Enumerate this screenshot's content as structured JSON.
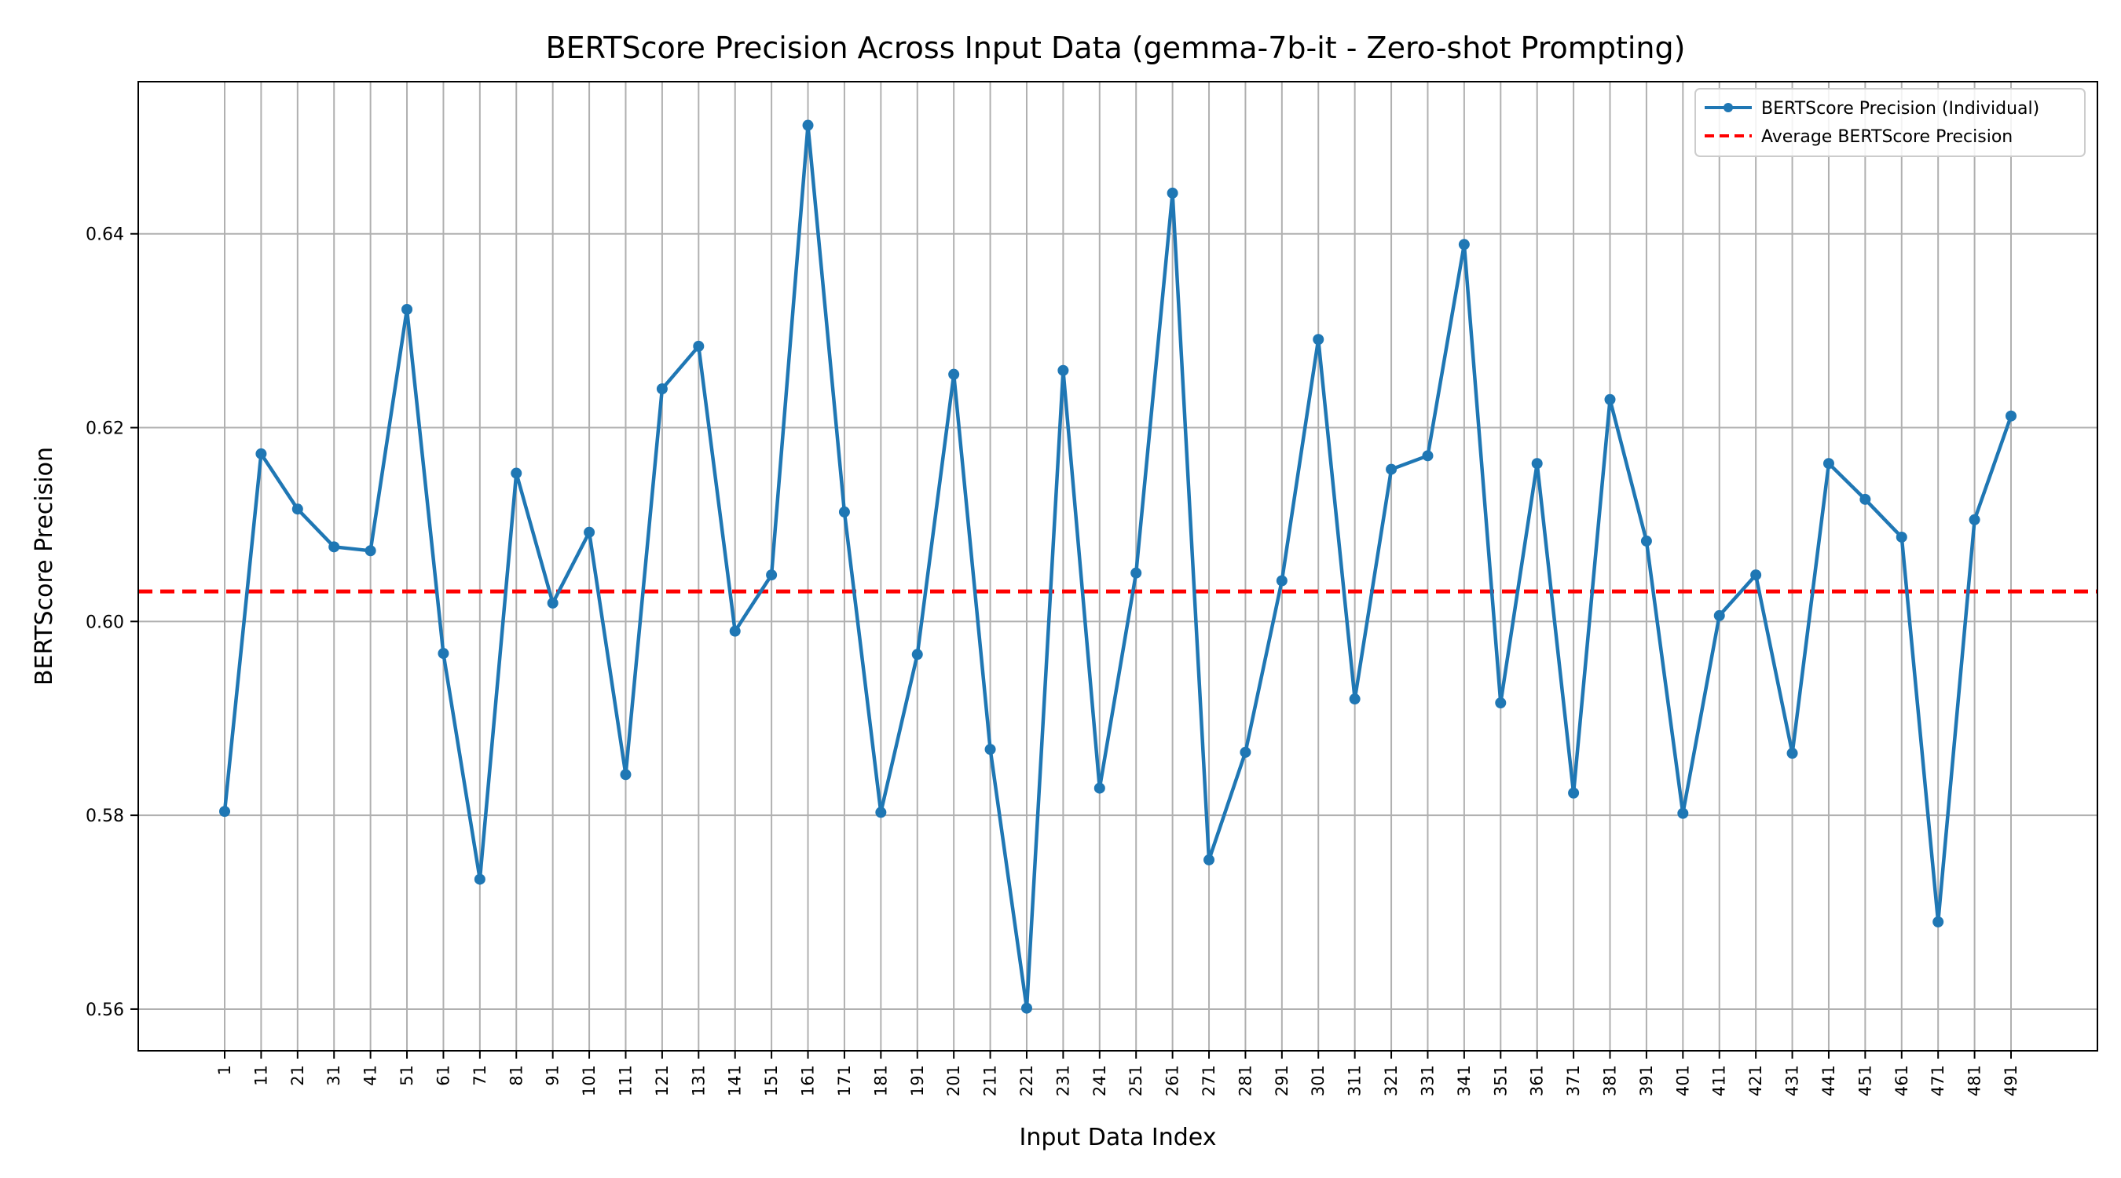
{
  "chart_data": {
    "type": "line",
    "title": "BERTScore Precision Across Input Data (gemma-7b-it - Zero-shot Prompting)",
    "xlabel": "Input Data Index",
    "ylabel": "BERTScore Precision",
    "x": [
      1,
      11,
      21,
      31,
      41,
      51,
      61,
      71,
      81,
      91,
      101,
      111,
      121,
      131,
      141,
      151,
      161,
      171,
      181,
      191,
      201,
      211,
      221,
      231,
      241,
      251,
      261,
      271,
      281,
      291,
      301,
      311,
      321,
      331,
      341,
      351,
      361,
      371,
      381,
      391,
      401,
      411,
      421,
      431,
      441,
      451,
      461,
      471,
      481,
      491
    ],
    "series": [
      {
        "name": "BERTScore Precision (Individual)",
        "color": "#1f77b4",
        "marker": "circle",
        "values": [
          0.5804,
          0.6173,
          0.6116,
          0.6077,
          0.6073,
          0.6322,
          0.5967,
          0.5734,
          0.6153,
          0.6019,
          0.6092,
          0.5842,
          0.624,
          0.6284,
          0.599,
          0.6048,
          0.6512,
          0.6113,
          0.5803,
          0.5966,
          0.6255,
          0.5868,
          0.5601,
          0.6259,
          0.5828,
          0.605,
          0.6442,
          0.5754,
          0.5865,
          0.6042,
          0.6291,
          0.592,
          0.6157,
          0.6171,
          0.6389,
          0.5916,
          0.6163,
          0.5823,
          0.6229,
          0.6083,
          0.5802,
          0.6006,
          0.6048,
          0.5864,
          0.6163,
          0.6126,
          0.6087,
          0.569,
          0.6105,
          0.6212
        ]
      }
    ],
    "reference_lines": [
      {
        "name": "Average BERTScore Precision",
        "y": 0.6031,
        "color": "#ff0000",
        "style": "dashed"
      }
    ],
    "ylim": [
      0.5557,
      0.6557
    ],
    "yticks": [
      0.56,
      0.58,
      0.6,
      0.62,
      0.64
    ],
    "ytick_labels": [
      "0.56",
      "0.58",
      "0.60",
      "0.62",
      "0.64"
    ],
    "xtick_labels": [
      "1",
      "11",
      "21",
      "31",
      "41",
      "51",
      "61",
      "71",
      "81",
      "91",
      "101",
      "111",
      "121",
      "131",
      "141",
      "151",
      "161",
      "171",
      "181",
      "191",
      "201",
      "211",
      "221",
      "231",
      "241",
      "251",
      "261",
      "271",
      "281",
      "291",
      "301",
      "311",
      "321",
      "331",
      "341",
      "351",
      "361",
      "371",
      "381",
      "391",
      "401",
      "411",
      "421",
      "431",
      "441",
      "451",
      "461",
      "471",
      "481",
      "491"
    ],
    "grid": true,
    "legend_position": "top-right"
  }
}
